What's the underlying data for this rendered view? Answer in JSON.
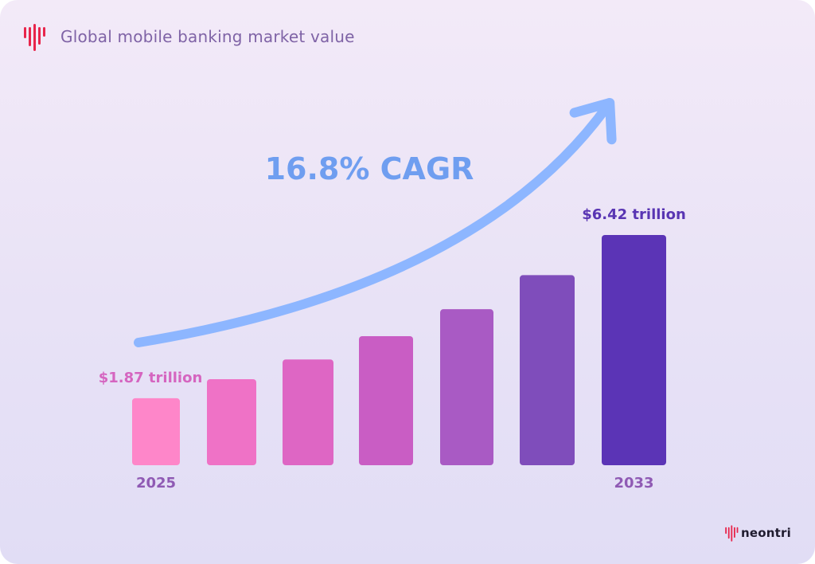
{
  "header": {
    "title": "Global mobile banking market value"
  },
  "brand": {
    "name": "neontri"
  },
  "colors": {
    "bars": [
      "#fe86c9",
      "#ef72c6",
      "#de66c4",
      "#c95dc4",
      "#a95ac4",
      "#7f4dbb",
      "#5b34b6"
    ],
    "arrow": "#8db6ff",
    "cagr_text": "#6f9ef0",
    "first_label": "#d565c0",
    "last_label": "#5935b3",
    "year_label": "#8f5ab4",
    "logo": "#e8254b"
  },
  "icons": {
    "header_logo": "neontri-logo-icon",
    "brand_logo": "neontri-logo-icon"
  },
  "chart_data": {
    "type": "bar",
    "title": "Global mobile banking market value",
    "categories": [
      "2025",
      "",
      "",
      "",
      "",
      "",
      "2033"
    ],
    "values": [
      1.87,
      2.4,
      2.95,
      3.6,
      4.35,
      5.3,
      6.42
    ],
    "unit": "trillion",
    "data_labels": [
      "$1.87 trillion",
      "",
      "",
      "",
      "",
      "",
      "$6.42 trillion"
    ],
    "ylim": [
      0,
      6.42
    ],
    "grid": false,
    "annotation": {
      "text": "16.8% CAGR",
      "kind": "trend-arrow"
    }
  }
}
